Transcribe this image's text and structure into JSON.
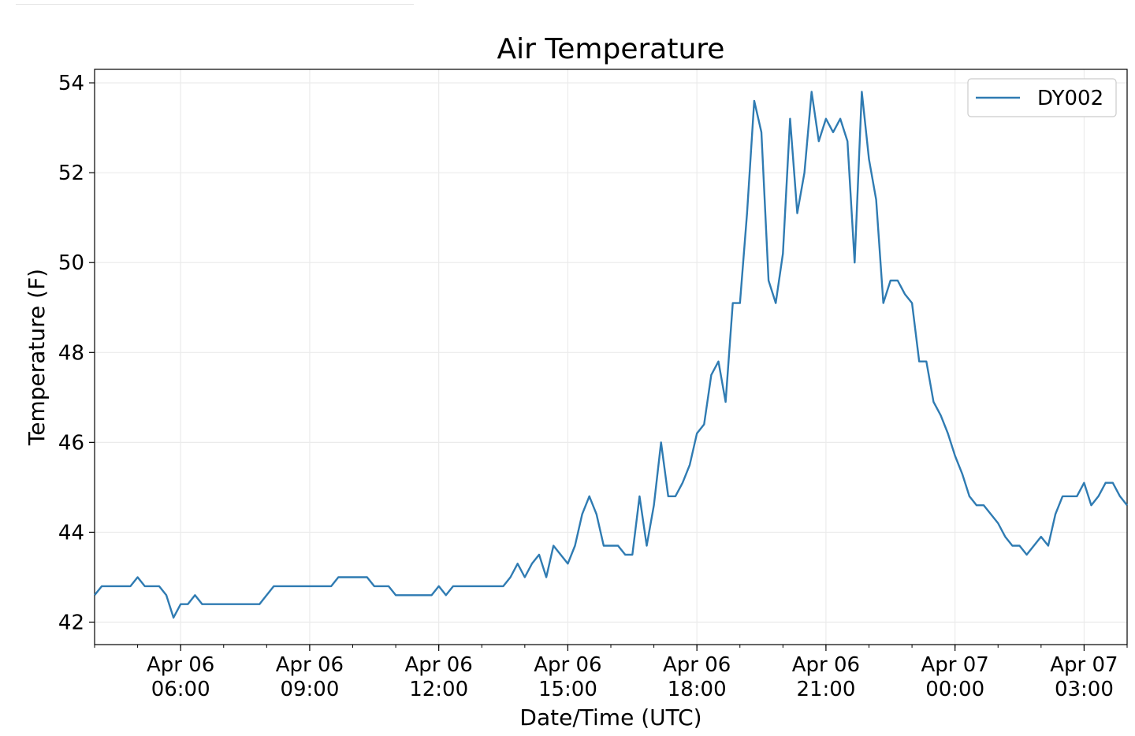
{
  "chart_data": {
    "type": "line",
    "title": "Air Temperature",
    "xlabel": "Date/Time (UTC)",
    "ylabel": "Temperature (F)",
    "x_range": [
      "2024-04-06T04:00",
      "2024-04-07T04:00"
    ],
    "ylim": [
      41.5,
      54.3
    ],
    "yticks": [
      42,
      44,
      46,
      48,
      50,
      52,
      54
    ],
    "xticks": [
      {
        "at": "2024-04-06T06:00",
        "line1": "Apr 06",
        "line2": "06:00"
      },
      {
        "at": "2024-04-06T09:00",
        "line1": "Apr 06",
        "line2": "09:00"
      },
      {
        "at": "2024-04-06T12:00",
        "line1": "Apr 06",
        "line2": "12:00"
      },
      {
        "at": "2024-04-06T15:00",
        "line1": "Apr 06",
        "line2": "15:00"
      },
      {
        "at": "2024-04-06T18:00",
        "line1": "Apr 06",
        "line2": "18:00"
      },
      {
        "at": "2024-04-06T21:00",
        "line1": "Apr 06",
        "line2": "21:00"
      },
      {
        "at": "2024-04-07T00:00",
        "line1": "Apr 07",
        "line2": "00:00"
      },
      {
        "at": "2024-04-07T03:00",
        "line1": "Apr 07",
        "line2": "03:00"
      }
    ],
    "grid": true,
    "legend_position": "top-right",
    "series": [
      {
        "name": "DY002",
        "color": "#2f7bb2",
        "x": [
          "2024-04-06T04:00",
          "2024-04-06T04:10",
          "2024-04-06T04:20",
          "2024-04-06T04:30",
          "2024-04-06T04:40",
          "2024-04-06T04:50",
          "2024-04-06T05:00",
          "2024-04-06T05:10",
          "2024-04-06T05:20",
          "2024-04-06T05:30",
          "2024-04-06T05:40",
          "2024-04-06T05:50",
          "2024-04-06T06:00",
          "2024-04-06T06:10",
          "2024-04-06T06:20",
          "2024-04-06T06:30",
          "2024-04-06T06:40",
          "2024-04-06T06:50",
          "2024-04-06T07:00",
          "2024-04-06T07:10",
          "2024-04-06T07:20",
          "2024-04-06T07:30",
          "2024-04-06T07:40",
          "2024-04-06T07:50",
          "2024-04-06T08:00",
          "2024-04-06T08:10",
          "2024-04-06T08:20",
          "2024-04-06T08:30",
          "2024-04-06T08:40",
          "2024-04-06T08:50",
          "2024-04-06T09:00",
          "2024-04-06T09:10",
          "2024-04-06T09:20",
          "2024-04-06T09:30",
          "2024-04-06T09:40",
          "2024-04-06T09:50",
          "2024-04-06T10:00",
          "2024-04-06T10:10",
          "2024-04-06T10:20",
          "2024-04-06T10:30",
          "2024-04-06T10:40",
          "2024-04-06T10:50",
          "2024-04-06T11:00",
          "2024-04-06T11:10",
          "2024-04-06T11:20",
          "2024-04-06T11:30",
          "2024-04-06T11:40",
          "2024-04-06T11:50",
          "2024-04-06T12:00",
          "2024-04-06T12:10",
          "2024-04-06T12:20",
          "2024-04-06T12:30",
          "2024-04-06T12:40",
          "2024-04-06T12:50",
          "2024-04-06T13:00",
          "2024-04-06T13:10",
          "2024-04-06T13:20",
          "2024-04-06T13:30",
          "2024-04-06T13:40",
          "2024-04-06T13:50",
          "2024-04-06T14:00",
          "2024-04-06T14:10",
          "2024-04-06T14:20",
          "2024-04-06T14:30",
          "2024-04-06T14:40",
          "2024-04-06T14:50",
          "2024-04-06T15:00",
          "2024-04-06T15:10",
          "2024-04-06T15:20",
          "2024-04-06T15:30",
          "2024-04-06T15:40",
          "2024-04-06T15:50",
          "2024-04-06T16:00",
          "2024-04-06T16:10",
          "2024-04-06T16:20",
          "2024-04-06T16:30",
          "2024-04-06T16:40",
          "2024-04-06T16:50",
          "2024-04-06T17:00",
          "2024-04-06T17:10",
          "2024-04-06T17:20",
          "2024-04-06T17:30",
          "2024-04-06T17:40",
          "2024-04-06T17:50",
          "2024-04-06T18:00",
          "2024-04-06T18:10",
          "2024-04-06T18:20",
          "2024-04-06T18:30",
          "2024-04-06T18:40",
          "2024-04-06T18:50",
          "2024-04-06T19:00",
          "2024-04-06T19:10",
          "2024-04-06T19:20",
          "2024-04-06T19:30",
          "2024-04-06T19:40",
          "2024-04-06T19:50",
          "2024-04-06T20:00",
          "2024-04-06T20:10",
          "2024-04-06T20:20",
          "2024-04-06T20:30",
          "2024-04-06T20:40",
          "2024-04-06T20:50",
          "2024-04-06T21:00",
          "2024-04-06T21:10",
          "2024-04-06T21:20",
          "2024-04-06T21:30",
          "2024-04-06T21:40",
          "2024-04-06T21:50",
          "2024-04-06T22:00",
          "2024-04-06T22:10",
          "2024-04-06T22:20",
          "2024-04-06T22:30",
          "2024-04-06T22:40",
          "2024-04-06T22:50",
          "2024-04-06T23:00",
          "2024-04-06T23:10",
          "2024-04-06T23:20",
          "2024-04-06T23:30",
          "2024-04-06T23:40",
          "2024-04-06T23:50",
          "2024-04-07T00:00",
          "2024-04-07T00:10",
          "2024-04-07T00:20",
          "2024-04-07T00:30",
          "2024-04-07T00:40",
          "2024-04-07T00:50",
          "2024-04-07T01:00",
          "2024-04-07T01:10",
          "2024-04-07T01:20",
          "2024-04-07T01:30",
          "2024-04-07T01:40",
          "2024-04-07T01:50",
          "2024-04-07T02:00",
          "2024-04-07T02:10",
          "2024-04-07T02:20",
          "2024-04-07T02:30",
          "2024-04-07T02:40",
          "2024-04-07T02:50",
          "2024-04-07T03:00",
          "2024-04-07T03:10",
          "2024-04-07T03:20",
          "2024-04-07T03:30",
          "2024-04-07T03:40",
          "2024-04-07T03:50",
          "2024-04-07T04:00"
        ],
        "values": [
          42.6,
          42.8,
          42.8,
          42.8,
          42.8,
          42.8,
          43.0,
          42.8,
          42.8,
          42.8,
          42.6,
          42.1,
          42.4,
          42.4,
          42.6,
          42.4,
          42.4,
          42.4,
          42.4,
          42.4,
          42.4,
          42.4,
          42.4,
          42.4,
          42.6,
          42.8,
          42.8,
          42.8,
          42.8,
          42.8,
          42.8,
          42.8,
          42.8,
          42.8,
          43.0,
          43.0,
          43.0,
          43.0,
          43.0,
          42.8,
          42.8,
          42.8,
          42.6,
          42.6,
          42.6,
          42.6,
          42.6,
          42.6,
          42.8,
          42.6,
          42.8,
          42.8,
          42.8,
          42.8,
          42.8,
          42.8,
          42.8,
          42.8,
          43.0,
          43.3,
          43.0,
          43.3,
          43.5,
          43.0,
          43.7,
          43.5,
          43.3,
          43.7,
          44.4,
          44.8,
          44.4,
          43.7,
          43.7,
          43.7,
          43.5,
          43.5,
          44.8,
          43.7,
          44.6,
          46.0,
          44.8,
          44.8,
          45.1,
          45.5,
          46.2,
          46.4,
          47.5,
          47.8,
          46.9,
          49.1,
          49.1,
          51.1,
          53.6,
          52.9,
          49.6,
          49.1,
          50.2,
          53.2,
          51.1,
          52.0,
          53.8,
          52.7,
          53.2,
          52.9,
          53.2,
          52.7,
          50.0,
          53.8,
          52.3,
          51.4,
          49.1,
          49.6,
          49.6,
          49.3,
          49.1,
          47.8,
          47.8,
          46.9,
          46.6,
          46.2,
          45.7,
          45.3,
          44.8,
          44.6,
          44.6,
          44.4,
          44.2,
          43.9,
          43.7,
          43.7,
          43.5,
          43.7,
          43.9,
          43.7,
          44.4,
          44.8,
          44.8,
          44.8,
          45.1,
          44.6,
          44.8,
          45.1,
          45.1,
          44.8,
          44.6
        ]
      }
    ]
  }
}
